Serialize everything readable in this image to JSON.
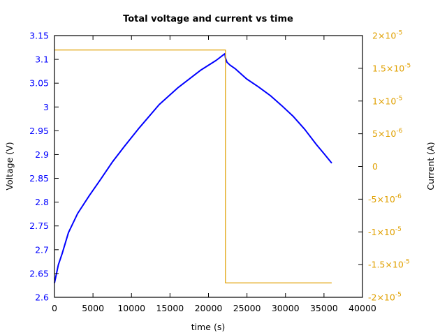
{
  "chart_data": {
    "type": "line",
    "title": "Total voltage and current vs time",
    "xlabel": "time (s)",
    "ylabel": "Voltage (V)",
    "y2label": "Current (A)",
    "xlim": [
      0,
      40000
    ],
    "ylim": [
      2.6,
      3.15
    ],
    "y2lim": [
      -2e-05,
      2e-05
    ],
    "grid": false,
    "legend": null,
    "x_ticks": [
      "0",
      "5000",
      "10000",
      "15000",
      "20000",
      "25000",
      "30000",
      "35000",
      "40000"
    ],
    "y_ticks": [
      "2.6",
      "2.65",
      "2.7",
      "2.75",
      "2.8",
      "2.85",
      "2.9",
      "2.95",
      "3",
      "3.05",
      "3.1",
      "3.15"
    ],
    "y2_ticks": [
      {
        "mant": "-2×10",
        "exp": "-5",
        "value": -2e-05
      },
      {
        "mant": "-1.5×10",
        "exp": "-5",
        "value": -1.5e-05
      },
      {
        "mant": "-1×10",
        "exp": "-5",
        "value": -1e-05
      },
      {
        "mant": "-5×10",
        "exp": "-6",
        "value": -5e-06
      },
      {
        "mant": "0",
        "exp": "",
        "value": 0
      },
      {
        "mant": "5×10",
        "exp": "-6",
        "value": 5e-06
      },
      {
        "mant": "1×10",
        "exp": "-5",
        "value": 1e-05
      },
      {
        "mant": "1.5×10",
        "exp": "-5",
        "value": 1.5e-05
      },
      {
        "mant": "2×10",
        "exp": "-5",
        "value": 2e-05
      }
    ],
    "series": [
      {
        "name": "Voltage",
        "axis": "left",
        "color": "#0000ff",
        "x": [
          0,
          500,
          1000,
          1814,
          3000,
          4535,
          6000,
          7500,
          9070,
          11000,
          13600,
          16000,
          19050,
          21000,
          22130,
          22200,
          22400,
          22800,
          23500,
          24940,
          26500,
          28030,
          29500,
          31020,
          32500,
          34010,
          35000,
          36010
        ],
        "y": [
          2.63,
          2.668,
          2.692,
          2.736,
          2.776,
          2.814,
          2.848,
          2.884,
          2.917,
          2.956,
          3.005,
          3.04,
          3.078,
          3.098,
          3.112,
          3.103,
          3.094,
          3.088,
          3.08,
          3.059,
          3.042,
          3.024,
          3.003,
          2.98,
          2.953,
          2.921,
          2.902,
          2.882
        ]
      },
      {
        "name": "Current",
        "axis": "right",
        "color": "#e0a000",
        "x": [
          0,
          22200,
          22200,
          36000
        ],
        "y": [
          1.78e-05,
          1.78e-05,
          -1.78e-05,
          -1.78e-05
        ]
      }
    ]
  },
  "colors": {
    "voltage": "#0000ff",
    "current": "#e0a000",
    "axis": "#000000"
  }
}
